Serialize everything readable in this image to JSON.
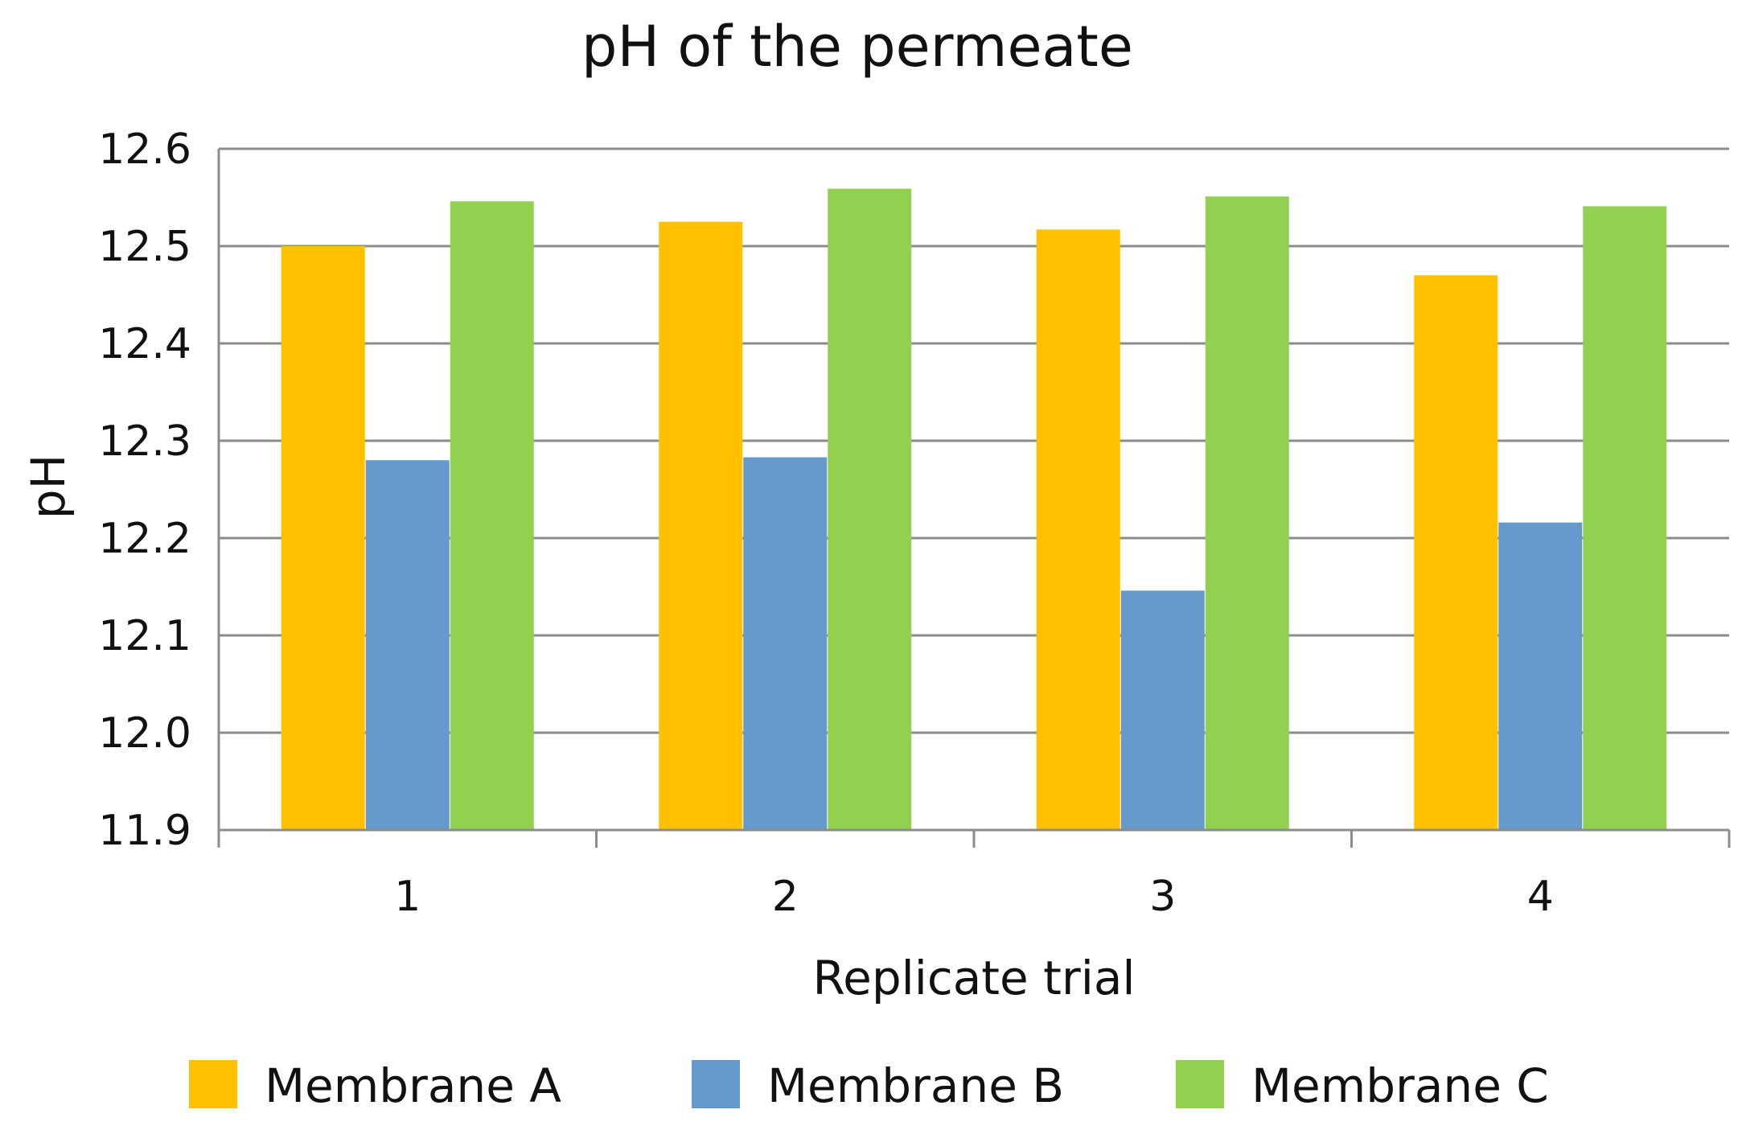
{
  "chart_data": {
    "type": "bar",
    "title": "pH of the permeate",
    "xlabel": "Replicate trial",
    "ylabel": "pH",
    "categories": [
      "1",
      "2",
      "3",
      "4"
    ],
    "series": [
      {
        "name": "Membrane A",
        "color": "#FFC000",
        "values": [
          12.5,
          12.525,
          12.517,
          12.47
        ]
      },
      {
        "name": "Membrane B",
        "color": "#6699CC",
        "values": [
          12.28,
          12.283,
          12.146,
          12.216
        ]
      },
      {
        "name": "Membrane C",
        "color": "#92D050",
        "values": [
          12.546,
          12.559,
          12.551,
          12.541
        ]
      }
    ],
    "ylim": [
      11.9,
      12.6
    ],
    "yticks": [
      "11.9",
      "12.0",
      "12.1",
      "12.2",
      "12.3",
      "12.4",
      "12.5",
      "12.6"
    ],
    "grid": true,
    "legend_position": "bottom"
  }
}
